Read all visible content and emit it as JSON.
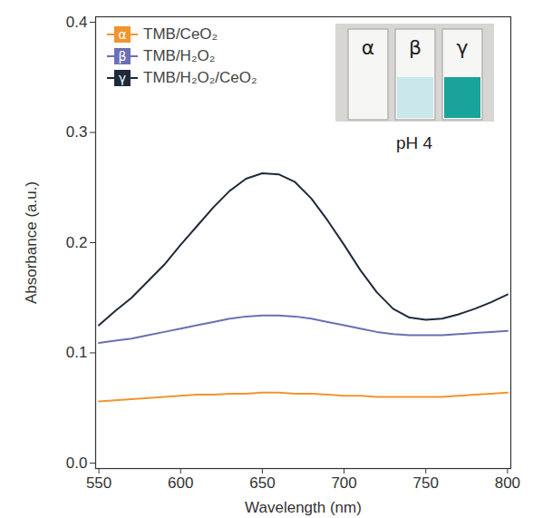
{
  "chart_data": {
    "type": "line",
    "x_label": "Wavelength (nm)",
    "y_label": "Absorbance (a.u.)",
    "x": [
      550,
      560,
      570,
      580,
      590,
      600,
      610,
      620,
      630,
      640,
      650,
      660,
      670,
      680,
      690,
      700,
      710,
      720,
      730,
      740,
      750,
      760,
      770,
      780,
      790,
      800
    ],
    "series": [
      {
        "name": "TMB/CeO₂",
        "label": "α",
        "color": "#f0962e",
        "values": [
          0.056,
          0.057,
          0.058,
          0.059,
          0.06,
          0.061,
          0.062,
          0.062,
          0.063,
          0.063,
          0.064,
          0.064,
          0.063,
          0.063,
          0.062,
          0.061,
          0.061,
          0.06,
          0.06,
          0.06,
          0.06,
          0.06,
          0.061,
          0.062,
          0.063,
          0.064
        ]
      },
      {
        "name": "TMB/H₂O₂",
        "label": "β",
        "color": "#6b6fb5",
        "values": [
          0.109,
          0.111,
          0.113,
          0.116,
          0.119,
          0.122,
          0.125,
          0.128,
          0.131,
          0.133,
          0.134,
          0.134,
          0.133,
          0.131,
          0.128,
          0.125,
          0.122,
          0.119,
          0.117,
          0.116,
          0.116,
          0.116,
          0.117,
          0.118,
          0.119,
          0.12
        ]
      },
      {
        "name": "TMB/H₂O₂/CeO₂",
        "label": "γ",
        "color": "#1e2a3a",
        "values": [
          0.125,
          0.138,
          0.15,
          0.165,
          0.18,
          0.198,
          0.215,
          0.232,
          0.247,
          0.258,
          0.263,
          0.262,
          0.255,
          0.24,
          0.22,
          0.198,
          0.175,
          0.155,
          0.14,
          0.132,
          0.13,
          0.131,
          0.135,
          0.14,
          0.146,
          0.153
        ]
      }
    ],
    "xlim": [
      548,
      802
    ],
    "xticks": [
      550,
      600,
      650,
      700,
      750,
      800
    ],
    "ylim": [
      -0.005,
      0.405
    ],
    "yticks": [
      {
        "value": 0,
        "label": "0.0"
      },
      0.1,
      0.2,
      0.3,
      0.4
    ],
    "legend": "upper left",
    "annotations": {
      "inset_labels": [
        "α",
        "β",
        "γ"
      ],
      "inset_caption": "pH 4"
    }
  }
}
